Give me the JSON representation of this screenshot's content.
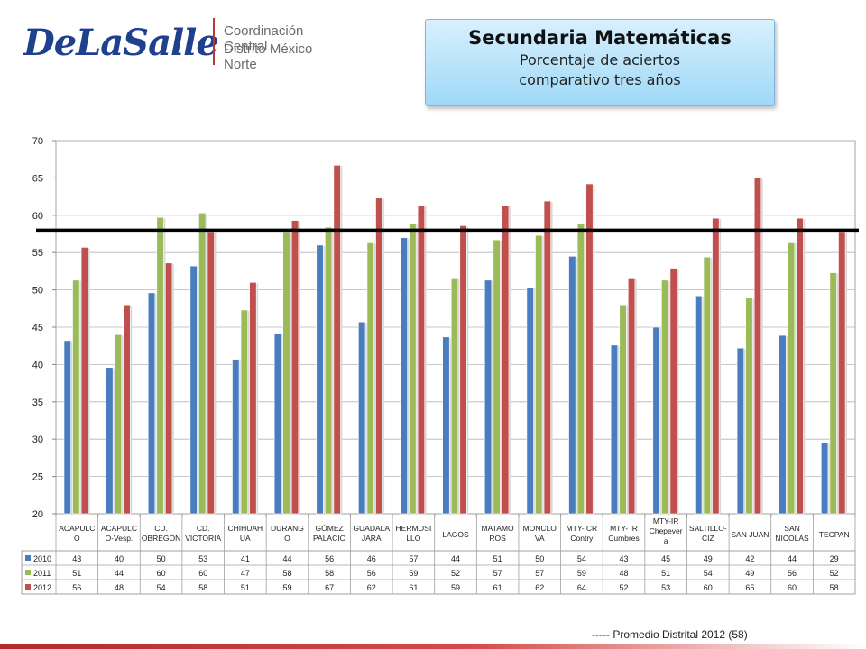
{
  "header": {
    "logo_text": "DeLaSalle",
    "org_line1": "Coordinación Central",
    "org_line2": "Distrito México Norte"
  },
  "title_box": {
    "title": "Secundaria Matemáticas",
    "subtitle_line1": "Porcentaje de aciertos",
    "subtitle_line2": "comparativo tres años"
  },
  "footer": {
    "note": "----- Promedio Distrital 2012   (58)"
  },
  "colors": {
    "2010": "#4a7cc0",
    "2011": "#9bbb59",
    "2012": "#c0504d",
    "reference_line": "#000000"
  },
  "chart_data": {
    "type": "bar",
    "ylim": [
      20,
      70
    ],
    "yticks": [
      20,
      25,
      30,
      35,
      40,
      45,
      50,
      55,
      60,
      65,
      70
    ],
    "grid": true,
    "legend": "table-below",
    "reference_line": {
      "value": 58
    },
    "categories": [
      [
        "ACAPULC",
        "O"
      ],
      [
        "ACAPULC",
        "O-Vesp."
      ],
      [
        "CD.",
        "OBREGÓN"
      ],
      [
        "CD.",
        "VICTORIA"
      ],
      [
        "CHIHUAH",
        "UA"
      ],
      [
        "DURANG",
        "O"
      ],
      [
        "GÓMEZ",
        "PALACIO"
      ],
      [
        "GUADALA",
        "JARA"
      ],
      [
        "HERMOSI",
        "LLO"
      ],
      [
        "LAGOS"
      ],
      [
        "MATAMO",
        "ROS"
      ],
      [
        "MONCLO",
        "VA"
      ],
      [
        "MTY- CR",
        "Contry"
      ],
      [
        "MTY- IR",
        "Cumbres"
      ],
      [
        "MTY-IR",
        "Chepever",
        "a"
      ],
      [
        "SALTILLO-",
        "CIZ"
      ],
      [
        "SAN JUAN"
      ],
      [
        "SAN",
        "NICOLÁS"
      ],
      [
        "TECPAN"
      ]
    ],
    "series": [
      {
        "name": "2010",
        "values": [
          43,
          40,
          50,
          53,
          41,
          44,
          56,
          46,
          57,
          44,
          51,
          50,
          54,
          43,
          45,
          49,
          42,
          44,
          29
        ],
        "precise": [
          43.2,
          39.6,
          49.6,
          53.2,
          40.7,
          44.2,
          56.0,
          45.7,
          57.0,
          43.7,
          51.3,
          50.3,
          54.5,
          42.6,
          45.0,
          49.2,
          42.2,
          43.9,
          29.5
        ]
      },
      {
        "name": "2011",
        "values": [
          51,
          44,
          60,
          60,
          47,
          58,
          58,
          56,
          59,
          52,
          57,
          57,
          59,
          48,
          51,
          54,
          49,
          56,
          52
        ],
        "precise": [
          51.3,
          44.0,
          59.7,
          60.3,
          47.3,
          57.8,
          58.4,
          56.3,
          58.9,
          51.6,
          56.7,
          57.3,
          58.9,
          48.0,
          51.3,
          54.4,
          48.9,
          56.3,
          52.3
        ]
      },
      {
        "name": "2012",
        "values": [
          56,
          48,
          54,
          58,
          51,
          59,
          67,
          62,
          61,
          59,
          61,
          62,
          64,
          52,
          53,
          60,
          65,
          60,
          58
        ],
        "precise": [
          55.7,
          48.0,
          53.6,
          57.8,
          51.0,
          59.3,
          66.7,
          62.3,
          61.3,
          58.6,
          61.3,
          61.9,
          64.2,
          51.6,
          52.9,
          59.6,
          65.0,
          59.6,
          57.8
        ]
      }
    ]
  }
}
